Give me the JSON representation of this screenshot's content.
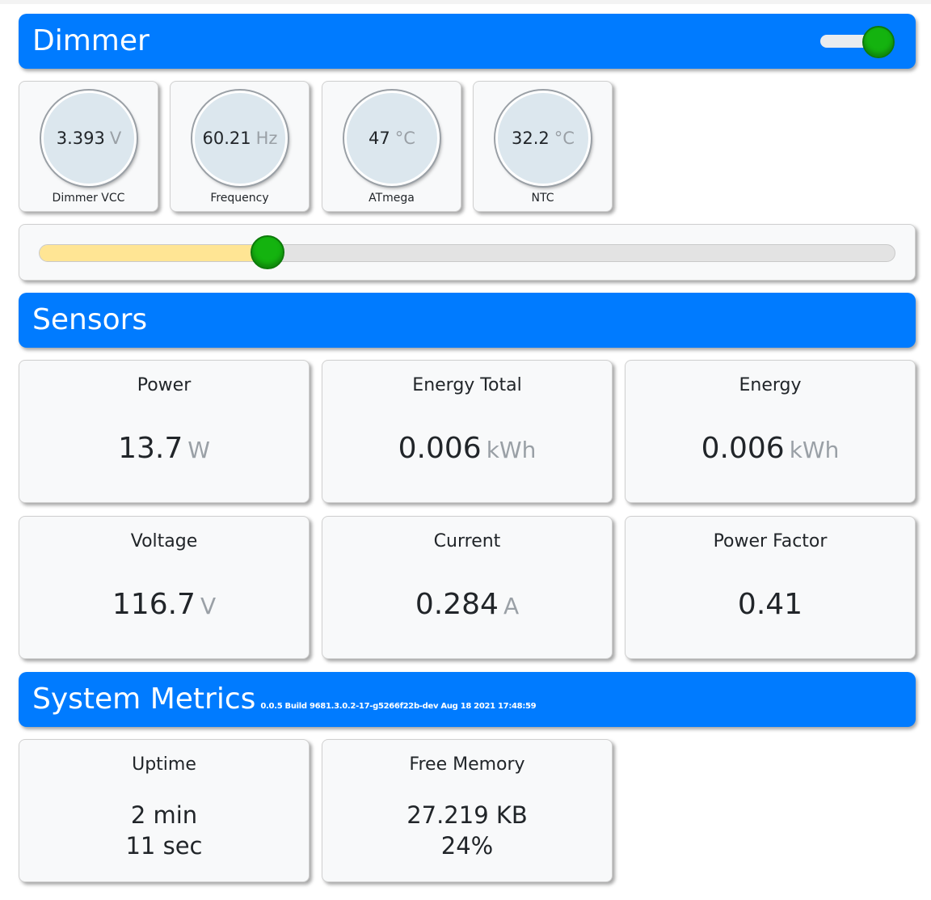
{
  "colors": {
    "header": "#007bff",
    "card": "#f8f9fa",
    "gauge": "#dce7ee",
    "unit": "#9aa0a6",
    "toggle_knob": "#14b30f",
    "slider_fill": "#ffe594"
  },
  "dimmer": {
    "title": "Dimmer",
    "toggle_on": true,
    "gauges": [
      {
        "value": "3.393",
        "unit": "V",
        "label": "Dimmer VCC"
      },
      {
        "value": "60.21",
        "unit": "Hz",
        "label": "Frequency"
      },
      {
        "value": "47",
        "unit": "°C",
        "label": "ATmega"
      },
      {
        "value": "32.2",
        "unit": "°C",
        "label": "NTC"
      }
    ],
    "slider_level": 0.267
  },
  "sensors": {
    "title": "Sensors",
    "cards": [
      {
        "title": "Power",
        "value": "13.7",
        "unit": "W"
      },
      {
        "title": "Energy Total",
        "value": "0.006",
        "unit": "kWh"
      },
      {
        "title": "Energy",
        "value": "0.006",
        "unit": "kWh"
      },
      {
        "title": "Voltage",
        "value": "116.7",
        "unit": "V"
      },
      {
        "title": "Current",
        "value": "0.284",
        "unit": "A"
      },
      {
        "title": "Power Factor",
        "value": "0.41",
        "unit": ""
      }
    ]
  },
  "system": {
    "title": "System Metrics",
    "build": "0.0.5 Build 9681.3.0.2-17-g5266f22b-dev Aug 18 2021 17:48:59",
    "uptime": {
      "title": "Uptime",
      "line1": "2 min",
      "line2": "11 sec"
    },
    "memory": {
      "title": "Free Memory",
      "line1": "27.219 KB",
      "line2": "24%"
    }
  }
}
